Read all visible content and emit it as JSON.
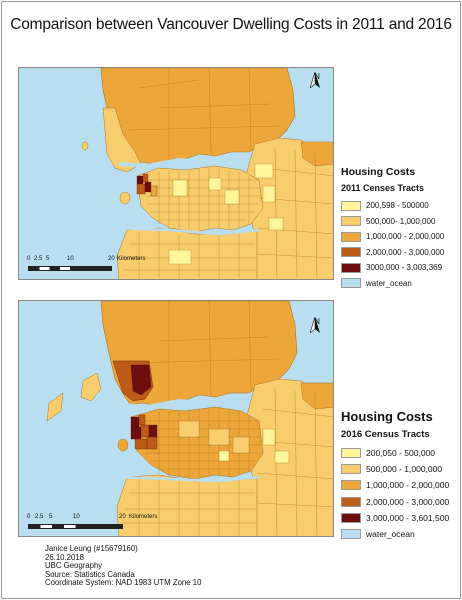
{
  "title": "Comparison between Vancouver Dwelling Costs in 2011 and 2016",
  "colors": {
    "water": "#b8def0",
    "class1": "#fff59a",
    "class2": "#f8cd6e",
    "class3": "#eca63a",
    "class4": "#bd5c18",
    "class5": "#6d0e0e",
    "frame": "#888888"
  },
  "maps": [
    {
      "north_label": "N",
      "scale": {
        "ticks": [
          "0",
          "2.5",
          "5",
          "10",
          "20"
        ],
        "unit": "Kilometers"
      },
      "legend": {
        "title": "Housing Costs",
        "subtitle": "2011 Censes Tracts",
        "items": [
          {
            "label": "200,598 - 500000",
            "color": "#fff59a"
          },
          {
            "label": "500,000- 1,000,000",
            "color": "#f8cd6e"
          },
          {
            "label": "1,000,000 - 2,000,000",
            "color": "#eca63a"
          },
          {
            "label": "2,000,000 - 3,000,000",
            "color": "#bd5c18"
          },
          {
            "label": "3000,000 - 3,003,369",
            "color": "#6d0e0e"
          },
          {
            "label": "water_ocean",
            "color": "#b8def0"
          }
        ]
      }
    },
    {
      "north_label": "N",
      "scale": {
        "ticks": [
          "0",
          "2.5",
          "5",
          "10",
          "20"
        ],
        "unit": "Kilometers"
      },
      "legend": {
        "title": "Housing Costs",
        "subtitle": "2016 Census Tracts",
        "items": [
          {
            "label": "200,050 - 500,000",
            "color": "#fff59a"
          },
          {
            "label": "500,000 - 1,000,000",
            "color": "#f8cd6e"
          },
          {
            "label": "1,000,000 - 2,000,000",
            "color": "#eca63a"
          },
          {
            "label": "2,000,000 - 3,000,000",
            "color": "#bd5c18"
          },
          {
            "label": "3,000,000 - 3,601,500",
            "color": "#6d0e0e"
          },
          {
            "label": "water_ocean",
            "color": "#b8def0"
          }
        ]
      }
    }
  ],
  "credits": [
    "Janice Leung (#15679160)",
    "26.10.2018",
    "UBC Geography",
    "Source: Statistics Canada",
    "Coordinate System: NAD 1983 UTM Zone 10"
  ]
}
